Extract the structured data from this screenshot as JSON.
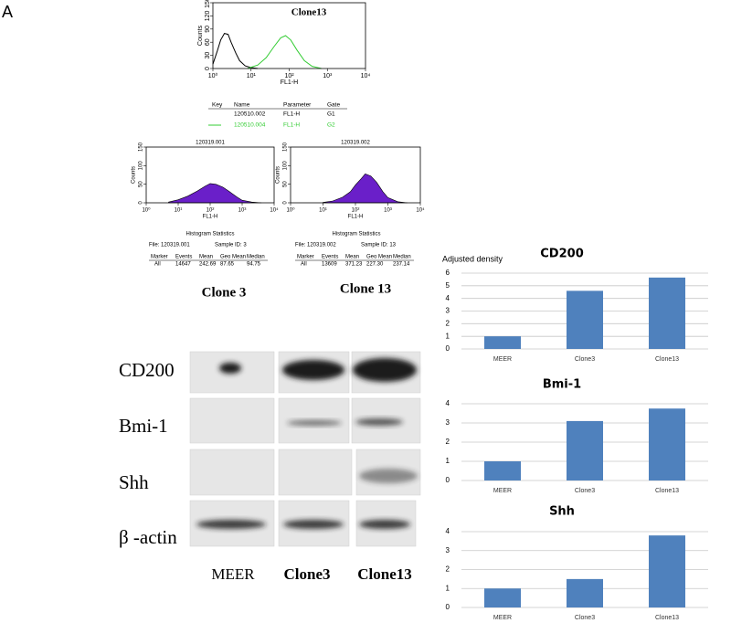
{
  "panel_label": "A",
  "chart_data": [
    {
      "type": "line",
      "title": "Clone13",
      "xlabel": "FL1-H",
      "ylabel": "Counts",
      "xscale": "log",
      "xlim": [
        1,
        10000
      ],
      "ylim": [
        0,
        150
      ],
      "xticks": [
        {
          "value": 1,
          "label": "10⁰"
        },
        {
          "value": 10,
          "label": "10¹"
        },
        {
          "value": 100,
          "label": "10²"
        },
        {
          "value": 1000,
          "label": "10³"
        },
        {
          "value": 10000,
          "label": "10⁴"
        }
      ],
      "yticks": [
        0,
        30,
        60,
        90,
        120,
        150
      ],
      "series": [
        {
          "name": "120510.002",
          "color": "#000000",
          "x": [
            1,
            1.3,
            1.6,
            2,
            2.5,
            3,
            4,
            5,
            7,
            10,
            15
          ],
          "values": [
            10,
            40,
            65,
            80,
            78,
            60,
            35,
            18,
            6,
            2,
            0
          ]
        },
        {
          "name": "120510.004",
          "color": "#33cc33",
          "x": [
            8,
            15,
            25,
            40,
            60,
            80,
            110,
            160,
            250,
            400,
            700
          ],
          "values": [
            0,
            8,
            25,
            50,
            70,
            75,
            65,
            42,
            18,
            5,
            0
          ]
        }
      ]
    },
    {
      "type": "area",
      "title": "120319.001",
      "xlabel": "FL1-H",
      "ylabel": "Counts",
      "xscale": "log",
      "xlim": [
        1,
        10000
      ],
      "ylim": [
        0,
        150
      ],
      "xticks": [
        {
          "value": 1,
          "label": "10⁰"
        },
        {
          "value": 10,
          "label": "10¹"
        },
        {
          "value": 100,
          "label": "10²"
        },
        {
          "value": 1000,
          "label": "10³"
        },
        {
          "value": 10000,
          "label": "10⁴"
        }
      ],
      "yticks": [
        0,
        50,
        100,
        150
      ],
      "series": [
        {
          "name": "120319.001",
          "color": "#6a1fc9",
          "x": [
            5,
            10,
            20,
            40,
            70,
            100,
            150,
            250,
            400,
            700,
            1000,
            2000,
            4000
          ],
          "values": [
            2,
            8,
            18,
            32,
            45,
            52,
            50,
            42,
            30,
            15,
            7,
            2,
            0
          ]
        }
      ]
    },
    {
      "type": "area",
      "title": "120319.002",
      "xlabel": "FL1-H",
      "ylabel": "Counts",
      "xscale": "log",
      "xlim": [
        1,
        10000
      ],
      "ylim": [
        0,
        150
      ],
      "xticks": [
        {
          "value": 1,
          "label": "10⁰"
        },
        {
          "value": 10,
          "label": "10¹"
        },
        {
          "value": 100,
          "label": "10²"
        },
        {
          "value": 1000,
          "label": "10³"
        },
        {
          "value": 10000,
          "label": "10⁴"
        }
      ],
      "yticks": [
        0,
        50,
        100,
        150
      ],
      "series": [
        {
          "name": "120319.002",
          "color": "#6a1fc9",
          "x": [
            10,
            20,
            40,
            70,
            100,
            150,
            200,
            300,
            450,
            700,
            1000,
            2000,
            4000
          ],
          "values": [
            1,
            5,
            15,
            30,
            48,
            65,
            78,
            72,
            55,
            30,
            14,
            3,
            0
          ]
        }
      ]
    },
    {
      "type": "bar",
      "title": "CD200",
      "ylabel": "Adjusted density",
      "categories": [
        "MEER",
        "Clone3",
        "Clone13"
      ],
      "values": [
        1,
        4.6,
        5.65
      ],
      "color": "#4f81bd",
      "ylim": [
        0,
        6
      ],
      "yticks": [
        0,
        1,
        2,
        3,
        4,
        5,
        6
      ],
      "grid": true
    },
    {
      "type": "bar",
      "title": "Bmi-1",
      "categories": [
        "MEER",
        "Clone3",
        "Clone13"
      ],
      "values": [
        1,
        3.1,
        3.75
      ],
      "color": "#4f81bd",
      "ylim": [
        0,
        4
      ],
      "yticks": [
        0,
        1,
        2,
        3,
        4
      ],
      "grid": true
    },
    {
      "type": "bar",
      "title": "Shh",
      "categories": [
        "MEER",
        "Clone3",
        "Clone13"
      ],
      "values": [
        1,
        1.5,
        3.8
      ],
      "color": "#4f81bd",
      "ylim": [
        0,
        4
      ],
      "yticks": [
        0,
        1,
        2,
        3,
        4
      ],
      "grid": true
    }
  ],
  "flow_key": {
    "headers": [
      "Key",
      "Name",
      "Parameter",
      "Gate"
    ],
    "rows": [
      {
        "parameter": "FL1-H",
        "gate": "G1"
      },
      {
        "parameter": "FL1-H",
        "gate": "G2"
      }
    ]
  },
  "flow_stats": [
    {
      "heading": "Histogram Statistics",
      "file": "File: 120319.001",
      "sample": "Sample ID: 3",
      "headers": [
        "Marker",
        "Events",
        "Mean",
        "Geo Mean",
        "Median"
      ],
      "row": [
        "All",
        "14647",
        "242.69",
        "87.65",
        "94.75"
      ],
      "clone": "Clone 3"
    },
    {
      "heading": "Histogram Statistics",
      "file": "File: 120319.002",
      "sample": "Sample ID: 13",
      "headers": [
        "Marker",
        "Events",
        "Mean",
        "Geo Mean",
        "Median"
      ],
      "row": [
        "All",
        "13609",
        "371.23",
        "227.30",
        "237.14"
      ],
      "clone": "Clone 13"
    }
  ],
  "western": {
    "rows": [
      "CD200",
      "Bmi-1",
      "Shh",
      "β -actin"
    ],
    "columns": [
      "MEER",
      "Clone3",
      "Clone13"
    ]
  }
}
